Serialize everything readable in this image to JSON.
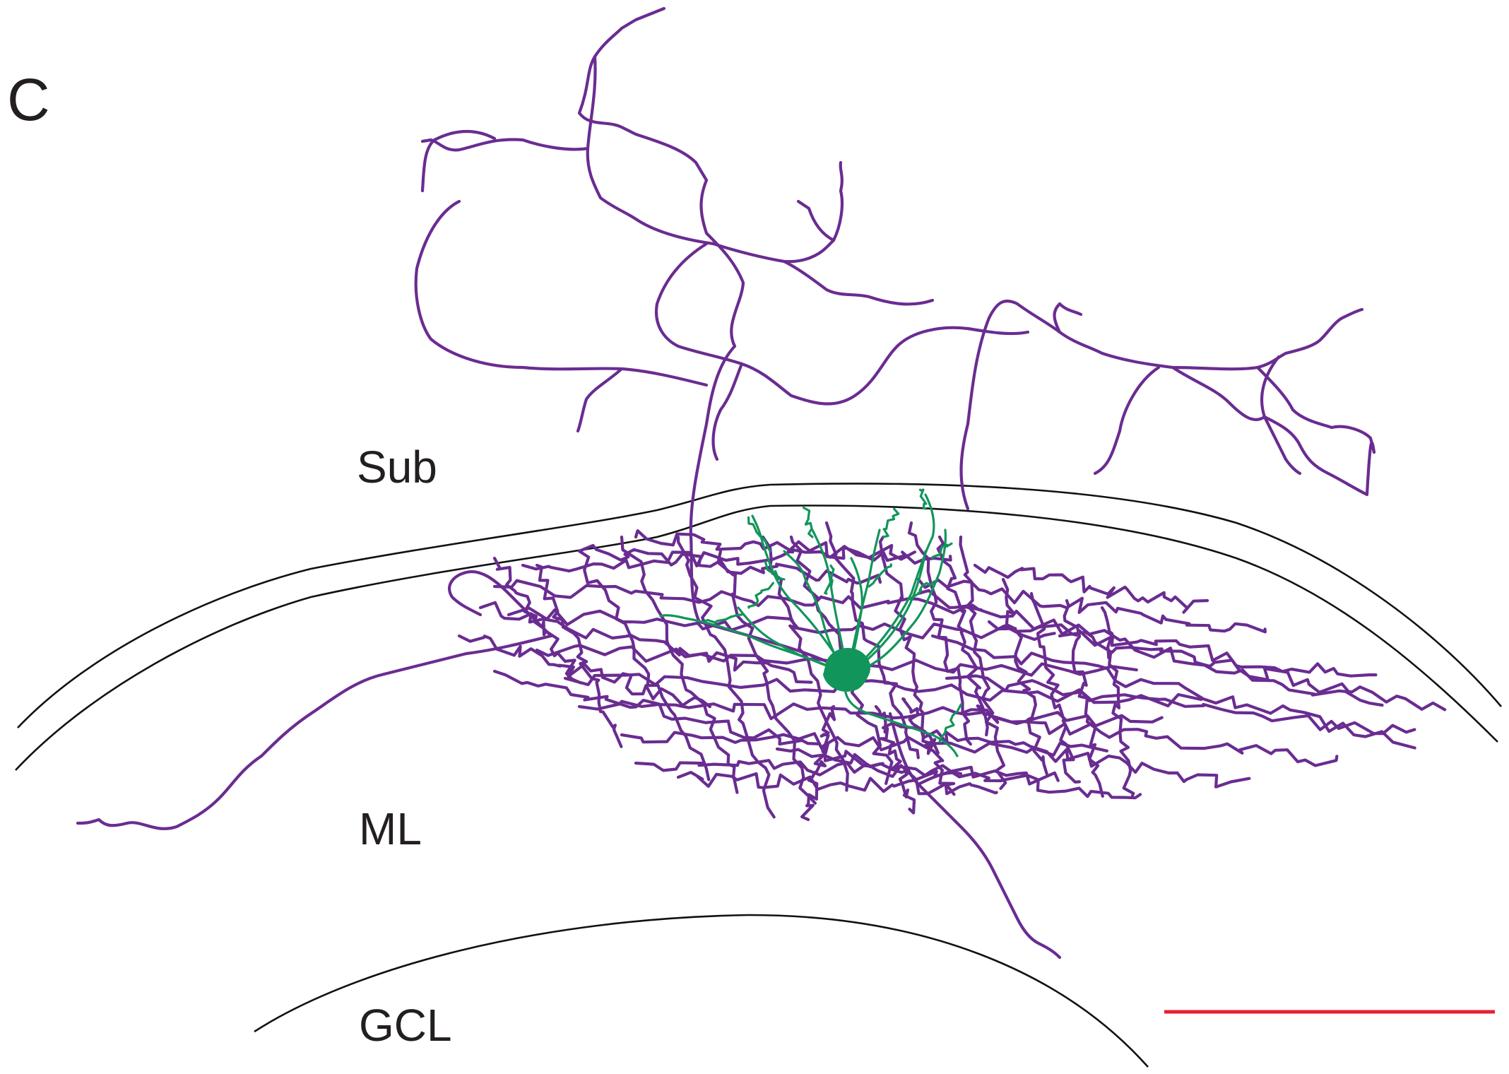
{
  "figure": {
    "panel_label": "C",
    "layer_labels": {
      "sub": "Sub",
      "ml": "ML",
      "gcl": "GCL"
    },
    "colors": {
      "axon": "#6a2c91",
      "dendrite": "#12955a",
      "soma": "#12955a",
      "scale_bar": "#e8202f",
      "boundary": "#111111"
    }
  }
}
